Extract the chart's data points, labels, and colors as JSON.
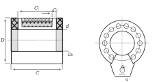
{
  "bg_color": "#ffffff",
  "line_color": "#2a2a2a",
  "dim_color": "#2a2a2a",
  "fig_width": 2.3,
  "fig_height": 1.2,
  "dpi": 100,
  "labels": {
    "C1": "C₁",
    "C7": "C₇",
    "C": "C",
    "D": "D",
    "d": "d",
    "D1": "D₁",
    "A6": "A₆",
    "alpha": "α"
  }
}
